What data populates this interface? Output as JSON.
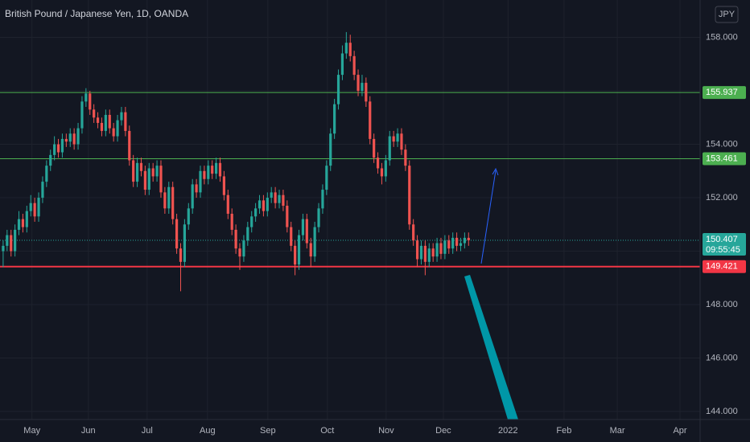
{
  "chart_data": {
    "type": "candlestick",
    "title": "British Pound / Japanese Yen, 1D, OANDA",
    "currency": "JPY",
    "countdown": "09:55:45",
    "up_color": "#26a69a",
    "down_color": "#ef5350",
    "ylim": [
      143.7,
      159.4
    ],
    "yticks": [
      {
        "value": 144,
        "label": "144.000"
      },
      {
        "value": 146,
        "label": "146.000"
      },
      {
        "value": 148,
        "label": "148.000"
      },
      {
        "value": 150,
        "label": "150.000"
      },
      {
        "value": 152,
        "label": "152.000"
      },
      {
        "value": 154,
        "label": "154.000"
      },
      {
        "value": 156,
        "label": "156.000"
      },
      {
        "value": 158,
        "label": "158.000"
      }
    ],
    "xlim": [
      -0.8,
      176.7
    ],
    "xticks": [
      {
        "value": 7.3,
        "label": "May"
      },
      {
        "value": 21.6,
        "label": "Jun"
      },
      {
        "value": 36.5,
        "label": "Jul"
      },
      {
        "value": 51.8,
        "label": "Aug"
      },
      {
        "value": 67.1,
        "label": "Sep"
      },
      {
        "value": 82.2,
        "label": "Oct"
      },
      {
        "value": 97.1,
        "label": "Nov"
      },
      {
        "value": 111.6,
        "label": "Dec"
      },
      {
        "value": 128,
        "label": "2022"
      },
      {
        "value": 142.2,
        "label": "Feb"
      },
      {
        "value": 155.7,
        "label": "Mar"
      },
      {
        "value": 171.6,
        "label": "Apr"
      }
    ],
    "grid": true,
    "levels": [
      {
        "value": 155.937,
        "color": "#4caf50"
      },
      {
        "value": 153.461,
        "color": "#4caf50"
      },
      {
        "value": 149.421,
        "color": "#f23645"
      }
    ],
    "open": [
      150.0,
      150.2,
      150.6,
      150.0,
      150.8,
      151.2,
      150.9,
      151.5,
      151.8,
      151.3,
      152.0,
      152.6,
      153.2,
      153.6,
      154.0,
      153.7,
      154.2,
      154.1,
      154.4,
      154.0,
      154.6,
      155.6,
      155.9,
      155.3,
      155.0,
      154.8,
      154.5,
      155.1,
      154.6,
      154.3,
      154.9,
      155.2,
      154.5,
      153.4,
      152.6,
      153.3,
      153.0,
      152.3,
      153.1,
      152.8,
      153.2,
      152.2,
      151.6,
      152.4,
      151.2,
      150.1,
      149.6,
      151.0,
      151.6,
      152.5,
      152.2,
      153.0,
      152.7,
      153.2,
      152.9,
      153.3,
      152.8,
      152.1,
      151.4,
      150.8,
      150.1,
      149.8,
      150.4,
      150.9,
      151.3,
      151.6,
      151.9,
      151.5,
      152.0,
      152.2,
      151.8,
      152.1,
      151.7,
      150.9,
      150.2,
      149.5,
      150.6,
      151.2,
      150.3,
      149.8,
      150.9,
      151.6,
      152.3,
      153.2,
      154.4,
      155.5,
      156.6,
      157.4,
      157.8,
      157.3,
      156.6,
      156.0,
      156.3,
      155.6,
      154.2,
      153.5,
      153.1,
      152.8,
      153.4,
      154.3,
      154.1,
      154.4,
      153.8,
      153.2,
      151.0,
      150.4,
      149.7,
      150.2,
      149.6,
      150.1,
      149.8,
      150.3,
      149.9,
      150.4,
      150.1,
      150.5,
      150.2,
      150.3,
      150.5
    ],
    "high": [
      150.4,
      150.8,
      150.8,
      151.0,
      151.5,
      151.4,
      151.7,
      152.1,
      152.0,
      152.2,
      152.8,
      153.4,
      153.8,
      154.3,
      154.2,
      154.4,
      154.4,
      154.6,
      154.6,
      154.8,
      155.8,
      156.1,
      156.0,
      155.5,
      155.2,
      155.0,
      155.3,
      155.3,
      154.8,
      155.1,
      155.4,
      155.4,
      154.7,
      153.6,
      153.5,
      153.5,
      153.2,
      153.3,
      153.3,
      153.4,
      153.4,
      152.4,
      152.6,
      152.6,
      151.4,
      150.3,
      151.2,
      151.8,
      152.7,
      152.7,
      153.2,
      153.2,
      153.4,
      153.4,
      153.5,
      153.5,
      153.0,
      152.3,
      151.6,
      151.0,
      150.3,
      150.6,
      151.1,
      151.5,
      151.8,
      152.1,
      152.1,
      152.2,
      152.4,
      152.4,
      152.3,
      152.3,
      151.9,
      151.1,
      150.4,
      150.8,
      151.4,
      151.4,
      150.5,
      151.1,
      151.8,
      152.5,
      153.4,
      154.6,
      155.7,
      156.8,
      157.7,
      158.2,
      158.1,
      157.5,
      156.8,
      156.6,
      156.5,
      155.8,
      154.4,
      153.7,
      153.3,
      153.6,
      154.5,
      154.5,
      154.6,
      154.6,
      154.0,
      153.4,
      151.2,
      150.6,
      150.4,
      150.4,
      150.3,
      150.3,
      150.5,
      150.5,
      150.6,
      150.6,
      150.7,
      150.7,
      150.5,
      150.7,
      150.7
    ],
    "low": [
      149.4,
      150.0,
      149.8,
      149.8,
      150.6,
      150.7,
      150.7,
      151.3,
      151.1,
      151.1,
      151.8,
      152.4,
      153.0,
      153.4,
      153.5,
      153.5,
      153.9,
      153.9,
      153.8,
      153.8,
      154.4,
      155.4,
      155.1,
      154.8,
      154.6,
      154.3,
      154.3,
      154.4,
      154.1,
      154.1,
      154.7,
      154.3,
      153.2,
      152.4,
      152.4,
      152.8,
      152.1,
      152.1,
      152.6,
      152.6,
      152.0,
      151.4,
      151.4,
      151.0,
      149.9,
      148.5,
      149.4,
      150.8,
      151.4,
      152.0,
      152.0,
      152.5,
      152.5,
      152.7,
      152.7,
      152.6,
      151.9,
      151.2,
      150.6,
      149.9,
      149.3,
      149.6,
      150.2,
      150.7,
      151.1,
      151.4,
      151.3,
      151.3,
      151.8,
      151.6,
      151.6,
      151.5,
      150.7,
      150.0,
      149.1,
      149.3,
      150.4,
      150.1,
      149.4,
      149.6,
      150.7,
      151.4,
      152.1,
      153.0,
      154.2,
      155.3,
      156.4,
      157.2,
      157.1,
      156.4,
      155.8,
      155.8,
      155.4,
      154.0,
      153.3,
      152.9,
      152.5,
      152.6,
      153.2,
      153.9,
      153.9,
      153.6,
      153.0,
      150.8,
      150.2,
      149.4,
      149.5,
      149.1,
      149.4,
      149.6,
      149.6,
      149.7,
      149.7,
      149.9,
      149.9,
      150.0,
      150.0,
      150.1,
      150.2
    ],
    "close": [
      150.2,
      150.6,
      150.0,
      150.8,
      151.2,
      150.9,
      151.5,
      151.8,
      151.3,
      152.0,
      152.6,
      153.2,
      153.6,
      154.0,
      153.7,
      154.2,
      154.1,
      154.4,
      154.0,
      154.6,
      155.6,
      155.9,
      155.3,
      155.0,
      154.8,
      154.5,
      155.1,
      154.6,
      154.3,
      154.9,
      155.2,
      154.5,
      153.4,
      152.6,
      153.3,
      153.0,
      152.3,
      153.1,
      152.8,
      153.2,
      152.2,
      151.6,
      152.4,
      151.2,
      150.1,
      149.6,
      151.0,
      151.6,
      152.5,
      152.2,
      153.0,
      152.7,
      153.2,
      152.9,
      153.3,
      152.8,
      152.1,
      151.4,
      150.8,
      150.1,
      149.8,
      150.4,
      150.9,
      151.3,
      151.6,
      151.9,
      151.5,
      152.0,
      152.2,
      151.8,
      152.1,
      151.7,
      150.9,
      150.2,
      149.5,
      150.6,
      151.2,
      150.3,
      149.8,
      150.9,
      151.6,
      152.3,
      153.2,
      154.4,
      155.5,
      156.6,
      157.4,
      157.8,
      157.3,
      156.6,
      156.0,
      156.3,
      155.6,
      154.2,
      153.5,
      153.1,
      152.8,
      153.4,
      154.3,
      154.1,
      154.4,
      153.8,
      153.2,
      151.0,
      150.4,
      149.7,
      150.2,
      149.6,
      150.1,
      149.8,
      150.3,
      149.9,
      150.4,
      150.1,
      150.5,
      150.2,
      150.3,
      150.5,
      150.407
    ]
  }
}
